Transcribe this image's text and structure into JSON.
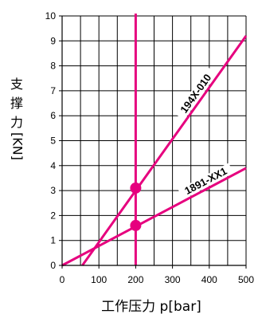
{
  "chart_data": {
    "type": "line",
    "title": "",
    "xlabel": "工作压力 p[bar]",
    "ylabel": "支撑力[KN]",
    "xlim": [
      0,
      500
    ],
    "ylim": [
      0,
      10
    ],
    "xticks": [
      "0",
      "100",
      "200",
      "300",
      "400",
      "500"
    ],
    "yticks": [
      "0",
      "1",
      "2",
      "3",
      "4",
      "5",
      "6",
      "7",
      "8",
      "9",
      "10"
    ],
    "grid": true,
    "line_color": "#e6007e",
    "series": [
      {
        "name": "194X-010",
        "x": [
          55,
          500
        ],
        "y": [
          0,
          9.2
        ]
      },
      {
        "name": "1891-XX1",
        "x": [
          0,
          500
        ],
        "y": [
          0,
          3.9
        ]
      }
    ],
    "vertical_line": {
      "x": 200
    },
    "markers": [
      {
        "x": 200,
        "y": 3.1
      },
      {
        "x": 200,
        "y": 1.6
      }
    ]
  }
}
